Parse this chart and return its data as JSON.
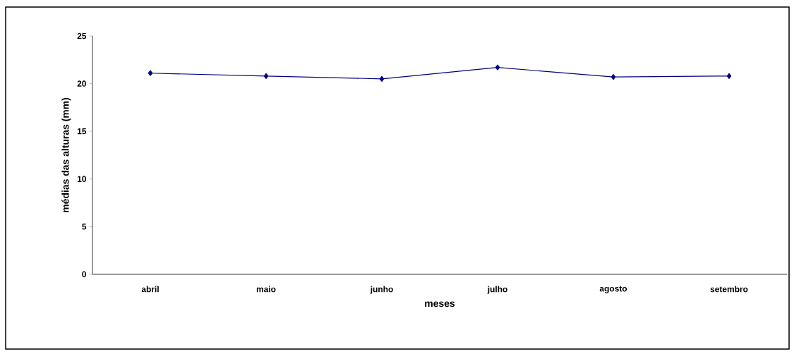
{
  "chart_data": {
    "type": "line",
    "xlabel": "meses",
    "ylabel": "médias das alturas (mm)",
    "categories": [
      "abril",
      "maio",
      "junho",
      "julho",
      "agosto",
      "setembro"
    ],
    "series": [
      {
        "color": "#000080",
        "values": [
          21.1,
          20.8,
          20.5,
          21.7,
          20.7,
          20.8
        ]
      }
    ],
    "ylim": [
      0,
      25
    ],
    "yticks": [
      0,
      5,
      10,
      15,
      20,
      25
    ],
    "grid": false,
    "marker": "diamond",
    "line_style": "solid"
  }
}
